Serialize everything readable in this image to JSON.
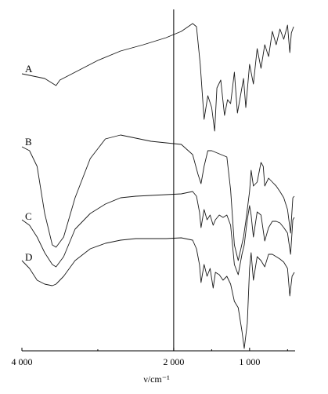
{
  "chart_data": {
    "type": "line",
    "title": "",
    "xlabel": "ν/cm⁻¹",
    "ylabel": "",
    "xlim": [
      4000,
      400
    ],
    "x_reversed": true,
    "x_ticks": [
      4000,
      2000,
      1000
    ],
    "x_tick_labels": [
      "4 000",
      "2 000",
      "1 000"
    ],
    "reference_line_x": 2000,
    "grid": false,
    "legend": "labels at left of each curve",
    "series": [
      {
        "name": "A",
        "points": [
          [
            4000,
            82
          ],
          [
            3700,
            88
          ],
          [
            3550,
            97
          ],
          [
            3500,
            90
          ],
          [
            3300,
            80
          ],
          [
            3000,
            65
          ],
          [
            2700,
            53
          ],
          [
            2400,
            45
          ],
          [
            2100,
            36
          ],
          [
            1900,
            28
          ],
          [
            1750,
            18
          ],
          [
            1700,
            22
          ],
          [
            1650,
            70
          ],
          [
            1600,
            140
          ],
          [
            1550,
            110
          ],
          [
            1500,
            125
          ],
          [
            1460,
            155
          ],
          [
            1430,
            100
          ],
          [
            1380,
            90
          ],
          [
            1330,
            135
          ],
          [
            1290,
            115
          ],
          [
            1250,
            120
          ],
          [
            1200,
            80
          ],
          [
            1160,
            132
          ],
          [
            1120,
            110
          ],
          [
            1080,
            88
          ],
          [
            1050,
            125
          ],
          [
            1000,
            70
          ],
          [
            950,
            95
          ],
          [
            900,
            50
          ],
          [
            850,
            75
          ],
          [
            800,
            45
          ],
          [
            750,
            60
          ],
          [
            700,
            28
          ],
          [
            650,
            45
          ],
          [
            600,
            25
          ],
          [
            550,
            38
          ],
          [
            500,
            20
          ],
          [
            470,
            55
          ],
          [
            450,
            30
          ],
          [
            420,
            22
          ]
        ]
      },
      {
        "name": "B",
        "points": [
          [
            4000,
            175
          ],
          [
            3900,
            180
          ],
          [
            3800,
            200
          ],
          [
            3700,
            260
          ],
          [
            3600,
            300
          ],
          [
            3550,
            303
          ],
          [
            3450,
            290
          ],
          [
            3300,
            240
          ],
          [
            3100,
            190
          ],
          [
            2900,
            165
          ],
          [
            2700,
            160
          ],
          [
            2500,
            164
          ],
          [
            2300,
            168
          ],
          [
            2100,
            170
          ],
          [
            1900,
            172
          ],
          [
            1750,
            185
          ],
          [
            1680,
            210
          ],
          [
            1640,
            222
          ],
          [
            1600,
            200
          ],
          [
            1550,
            180
          ],
          [
            1500,
            180
          ],
          [
            1400,
            184
          ],
          [
            1300,
            188
          ],
          [
            1250,
            230
          ],
          [
            1200,
            300
          ],
          [
            1150,
            320
          ],
          [
            1080,
            290
          ],
          [
            1050,
            270
          ],
          [
            1000,
            232
          ],
          [
            980,
            205
          ],
          [
            950,
            225
          ],
          [
            900,
            220
          ],
          [
            850,
            195
          ],
          [
            820,
            200
          ],
          [
            800,
            225
          ],
          [
            750,
            215
          ],
          [
            700,
            220
          ],
          [
            650,
            225
          ],
          [
            600,
            232
          ],
          [
            550,
            240
          ],
          [
            500,
            255
          ],
          [
            460,
            285
          ],
          [
            430,
            240
          ],
          [
            410,
            238
          ]
        ]
      },
      {
        "name": "C",
        "points": [
          [
            4000,
            268
          ],
          [
            3900,
            275
          ],
          [
            3800,
            290
          ],
          [
            3700,
            310
          ],
          [
            3600,
            325
          ],
          [
            3550,
            328
          ],
          [
            3450,
            315
          ],
          [
            3300,
            280
          ],
          [
            3100,
            260
          ],
          [
            2900,
            248
          ],
          [
            2700,
            240
          ],
          [
            2500,
            238
          ],
          [
            2300,
            237
          ],
          [
            2100,
            236
          ],
          [
            1900,
            235
          ],
          [
            1750,
            232
          ],
          [
            1700,
            238
          ],
          [
            1660,
            258
          ],
          [
            1640,
            278
          ],
          [
            1600,
            255
          ],
          [
            1560,
            268
          ],
          [
            1520,
            262
          ],
          [
            1480,
            275
          ],
          [
            1450,
            268
          ],
          [
            1400,
            262
          ],
          [
            1350,
            265
          ],
          [
            1300,
            262
          ],
          [
            1250,
            275
          ],
          [
            1200,
            325
          ],
          [
            1150,
            338
          ],
          [
            1100,
            312
          ],
          [
            1070,
            300
          ],
          [
            1030,
            268
          ],
          [
            1000,
            250
          ],
          [
            980,
            262
          ],
          [
            950,
            290
          ],
          [
            900,
            258
          ],
          [
            850,
            262
          ],
          [
            800,
            295
          ],
          [
            750,
            278
          ],
          [
            700,
            270
          ],
          [
            650,
            270
          ],
          [
            600,
            272
          ],
          [
            550,
            278
          ],
          [
            500,
            285
          ],
          [
            460,
            312
          ],
          [
            430,
            268
          ],
          [
            410,
            265
          ]
        ]
      },
      {
        "name": "D",
        "points": [
          [
            4000,
            320
          ],
          [
            3900,
            330
          ],
          [
            3800,
            345
          ],
          [
            3700,
            350
          ],
          [
            3600,
            352
          ],
          [
            3550,
            350
          ],
          [
            3450,
            340
          ],
          [
            3300,
            320
          ],
          [
            3100,
            305
          ],
          [
            2900,
            298
          ],
          [
            2700,
            294
          ],
          [
            2500,
            292
          ],
          [
            2300,
            292
          ],
          [
            2100,
            292
          ],
          [
            1900,
            291
          ],
          [
            1750,
            294
          ],
          [
            1700,
            305
          ],
          [
            1660,
            325
          ],
          [
            1640,
            348
          ],
          [
            1600,
            325
          ],
          [
            1560,
            340
          ],
          [
            1520,
            330
          ],
          [
            1480,
            355
          ],
          [
            1450,
            335
          ],
          [
            1400,
            338
          ],
          [
            1350,
            345
          ],
          [
            1300,
            340
          ],
          [
            1250,
            350
          ],
          [
            1200,
            372
          ],
          [
            1150,
            380
          ],
          [
            1100,
            410
          ],
          [
            1070,
            432
          ],
          [
            1030,
            400
          ],
          [
            1000,
            330
          ],
          [
            980,
            310
          ],
          [
            950,
            345
          ],
          [
            900,
            315
          ],
          [
            850,
            320
          ],
          [
            800,
            328
          ],
          [
            750,
            312
          ],
          [
            700,
            312
          ],
          [
            650,
            315
          ],
          [
            600,
            318
          ],
          [
            550,
            322
          ],
          [
            500,
            330
          ],
          [
            470,
            365
          ],
          [
            440,
            340
          ],
          [
            410,
            335
          ]
        ]
      }
    ]
  }
}
